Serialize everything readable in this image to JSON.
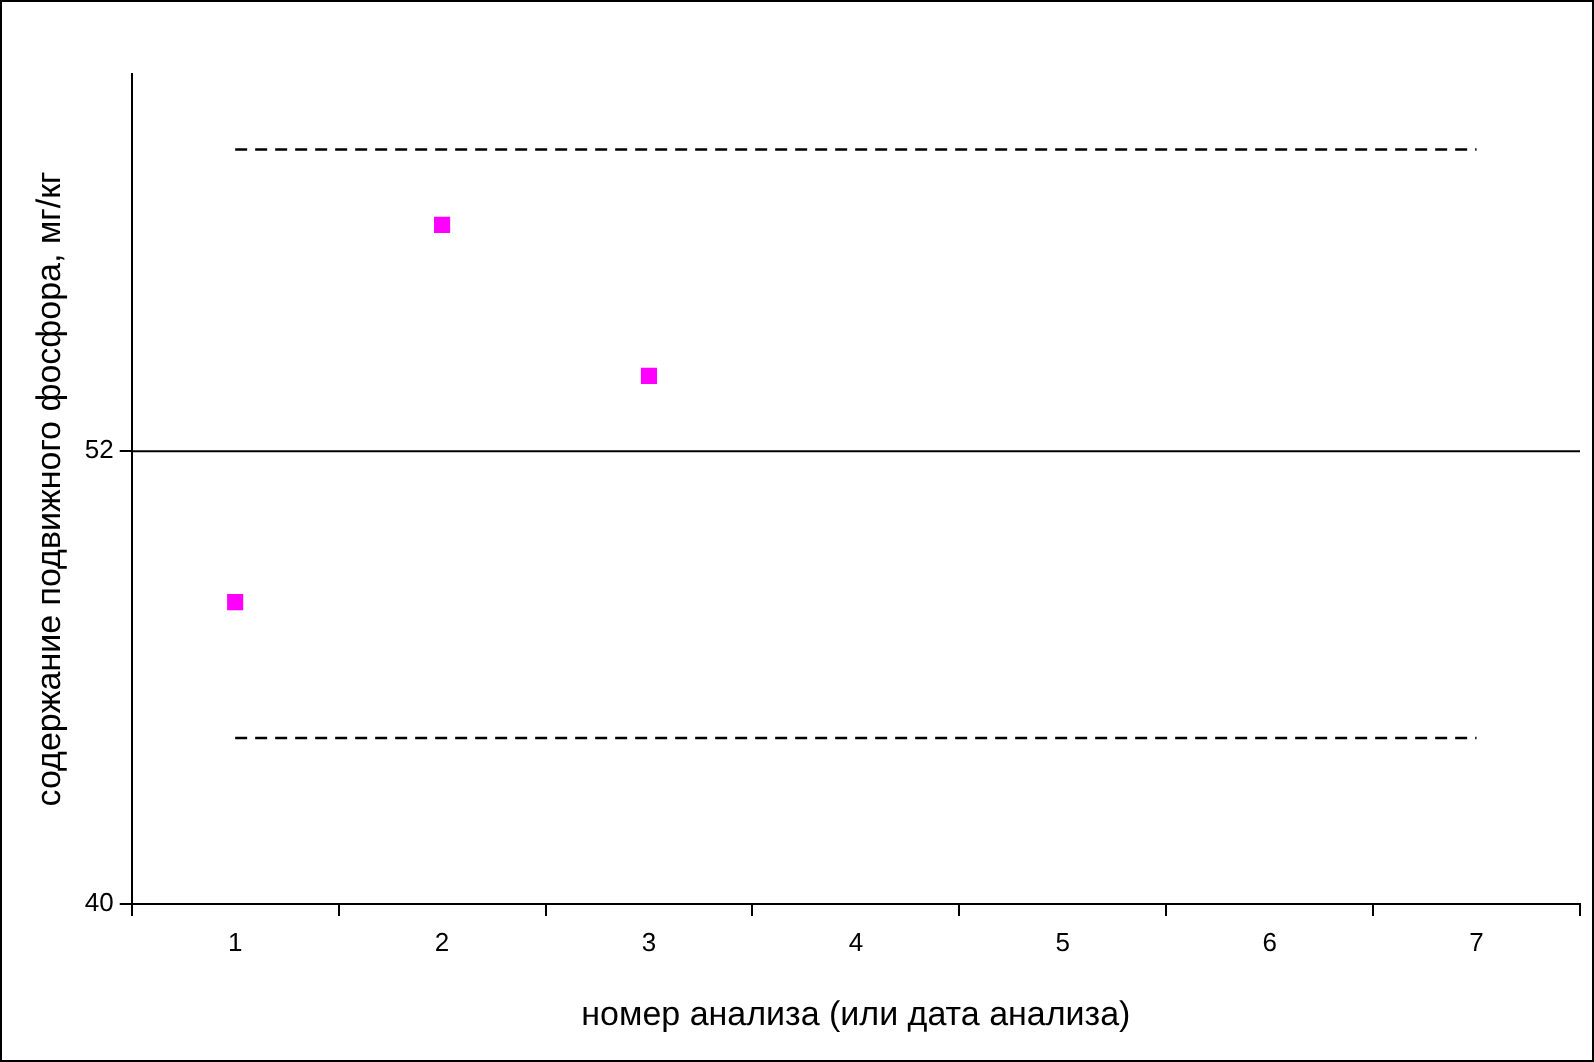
{
  "chart_data": {
    "type": "line",
    "xlabel": "номер анализа (или дата анализа)",
    "ylabel": "содержание подвижного фосфора, мг/кг",
    "categories": [
      "1",
      "2",
      "3",
      "4",
      "5",
      "6",
      "7"
    ],
    "series": [
      {
        "color": "#000000",
        "line_style": "dashed",
        "marker": "none",
        "values": [
          60,
          60,
          60,
          60,
          60,
          60,
          60
        ]
      },
      {
        "color": "#000000",
        "line_style": "dashed",
        "marker": "none",
        "values": [
          44.4,
          44.4,
          44.4,
          44.4,
          44.4,
          44.4,
          44.4
        ]
      },
      {
        "type": "scatter",
        "color": "#ff00ff",
        "marker": "square",
        "values": [
          48,
          58,
          54,
          null,
          null,
          null,
          null
        ]
      }
    ],
    "ylim": [
      40,
      62
    ],
    "yticks": [
      40,
      52
    ],
    "ref_lines": [
      {
        "axis": "y",
        "value": 52,
        "color": "#000000"
      }
    ],
    "legend": false
  }
}
